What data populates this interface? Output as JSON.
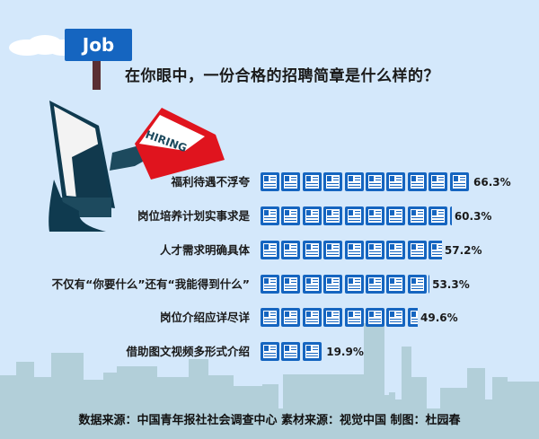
{
  "sign_text": "Job",
  "envelope_text": "HIRING",
  "colors": {
    "background": "#d4e8fb",
    "icon": "#1565c0",
    "skyline": "#b2cfd9",
    "envelope": "#e0141e"
  },
  "chart_data": {
    "type": "bar",
    "orientation": "horizontal",
    "mark": "pictogram-document-icons",
    "title": "在你眼中，一份合格的招聘简章是什么样的？",
    "categories": [
      "福利待遇不浮夸",
      "岗位培养计划实事求是",
      "人才需求明确具体",
      "不仅有“你要什么”还有“我能得到什么”",
      "岗位介绍应详尽详",
      "借助图文视频多形式介绍"
    ],
    "values": [
      66.3,
      60.3,
      57.2,
      53.3,
      49.6,
      19.9
    ],
    "value_labels": [
      "66.3%",
      "60.3%",
      "57.2%",
      "53.3%",
      "49.6%",
      "19.9%"
    ],
    "unit": "%"
  },
  "footer": "数据来源：中国青年报社社会调查中心 素材来源：视觉中国  制图：杜园春"
}
